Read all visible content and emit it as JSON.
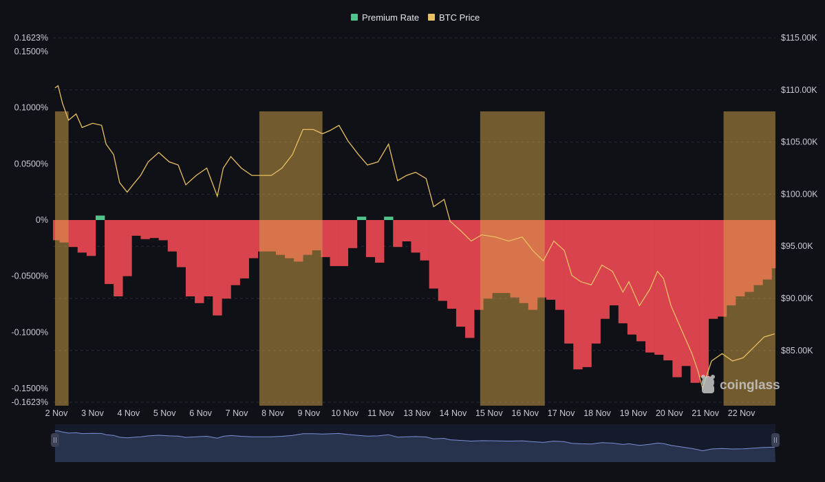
{
  "chart_data": {
    "type": "bar+line",
    "title": "",
    "legend": {
      "placement": "top-center",
      "items": [
        {
          "name": "Premium Rate",
          "color": "#4fc38a"
        },
        {
          "name": "BTC Price",
          "color": "#e8c062"
        }
      ]
    },
    "x_tick_labels": [
      "2 Nov",
      "3 Nov",
      "4 Nov",
      "5 Nov",
      "6 Nov",
      "7 Nov",
      "8 Nov",
      "9 Nov",
      "10 Nov",
      "11 Nov",
      "13 Nov",
      "14 Nov",
      "15 Nov",
      "16 Nov",
      "17 Nov",
      "18 Nov",
      "19 Nov",
      "20 Nov",
      "21 Nov",
      "22 Nov"
    ],
    "y_left": {
      "ticks": [
        "0.1623%",
        "0.1500%",
        "0.1000%",
        "0.0500%",
        "0%",
        "-0.0500%",
        "-0.1000%",
        "-0.1500%",
        "-0.1623%"
      ],
      "tick_values": [
        0.1623,
        0.15,
        0.1,
        0.05,
        0,
        -0.05,
        -0.1,
        -0.15,
        -0.1623
      ],
      "range": [
        -0.1623,
        0.1623
      ],
      "unit": "%"
    },
    "y_right": {
      "ticks": [
        "$115.00K",
        "$110.00K",
        "$105.00K",
        "$100.00K",
        "$95.00K",
        "$90.00K",
        "$85.00K"
      ],
      "tick_values": [
        115,
        110,
        105,
        100,
        95,
        90,
        85
      ],
      "unit": "$K"
    },
    "grid": "dashed horizontal",
    "colors": {
      "negative_bar": "#d9434e",
      "positive_bar": "#4fc38a",
      "price_line": "#e8c062",
      "highlight_band": "#c89a44",
      "navigator_line": "#7b8fd6",
      "navigator_fill": "#27324d",
      "background": "#0f1117"
    },
    "highlight_bands": [
      {
        "from": "2 Nov 00:00",
        "to": "2 Nov 09:00"
      },
      {
        "from": "7 Nov 16:00",
        "to": "9 Nov 10:00"
      },
      {
        "from": "13 Nov 19:00",
        "to": "15 Nov 14:00"
      },
      {
        "from": "20 Nov 13:00",
        "to": "21 Nov 23:30"
      }
    ],
    "premium_rate": {
      "name": "Premium Rate",
      "start": "2 Nov 00:00",
      "interval_hours": 6,
      "values": [
        -0.018,
        -0.02,
        -0.024,
        -0.029,
        -0.032,
        0.004,
        -0.057,
        -0.068,
        -0.05,
        -0.014,
        -0.017,
        -0.016,
        -0.018,
        -0.028,
        -0.042,
        -0.068,
        -0.074,
        -0.068,
        -0.085,
        -0.07,
        -0.058,
        -0.052,
        -0.034,
        -0.028,
        -0.028,
        -0.031,
        -0.034,
        -0.037,
        -0.031,
        -0.027,
        -0.033,
        -0.041,
        -0.041,
        -0.025,
        0.003,
        -0.033,
        -0.038,
        0.003,
        -0.024,
        -0.019,
        -0.029,
        -0.036,
        -0.061,
        -0.072,
        -0.079,
        -0.095,
        -0.105,
        -0.08,
        -0.07,
        -0.065,
        -0.065,
        -0.069,
        -0.074,
        -0.08,
        -0.069,
        -0.071,
        -0.08,
        -0.11,
        -0.133,
        -0.131,
        -0.11,
        -0.088,
        -0.076,
        -0.092,
        -0.102,
        -0.108,
        -0.118,
        -0.12,
        -0.125,
        -0.14,
        -0.13,
        -0.145,
        -0.14,
        -0.088,
        -0.086,
        -0.076,
        -0.068,
        -0.064,
        -0.058,
        -0.053,
        -0.043
      ]
    },
    "btc_price": {
      "name": "BTC Price",
      "unit": "$K",
      "points": [
        [
          "2 Nov 00:00",
          110.2
        ],
        [
          "2 Nov 02:00",
          110.4
        ],
        [
          "2 Nov 05:00",
          108.7
        ],
        [
          "2 Nov 09:00",
          107.1
        ],
        [
          "2 Nov 14:00",
          107.7
        ],
        [
          "2 Nov 18:00",
          106.4
        ],
        [
          "3 Nov 01:00",
          106.8
        ],
        [
          "3 Nov 07:00",
          106.6
        ],
        [
          "3 Nov 10:00",
          104.8
        ],
        [
          "3 Nov 15:00",
          103.8
        ],
        [
          "3 Nov 19:00",
          101.1
        ],
        [
          "4 Nov 00:00",
          100.2
        ],
        [
          "4 Nov 05:00",
          101.1
        ],
        [
          "4 Nov 09:00",
          101.8
        ],
        [
          "4 Nov 14:00",
          103.1
        ],
        [
          "4 Nov 21:00",
          104.0
        ],
        [
          "5 Nov 04:00",
          103.1
        ],
        [
          "5 Nov 10:00",
          102.8
        ],
        [
          "5 Nov 15:00",
          100.9
        ],
        [
          "5 Nov 22:00",
          101.8
        ],
        [
          "6 Nov 05:00",
          102.5
        ],
        [
          "6 Nov 12:00",
          99.8
        ],
        [
          "6 Nov 16:00",
          102.5
        ],
        [
          "6 Nov 21:00",
          103.6
        ],
        [
          "7 Nov 04:00",
          102.5
        ],
        [
          "7 Nov 11:00",
          101.8
        ],
        [
          "7 Nov 17:00",
          101.8
        ],
        [
          "8 Nov 00:00",
          101.8
        ],
        [
          "8 Nov 07:00",
          102.5
        ],
        [
          "8 Nov 14:00",
          103.8
        ],
        [
          "8 Nov 21:00",
          106.2
        ],
        [
          "9 Nov 04:00",
          106.2
        ],
        [
          "9 Nov 10:00",
          105.8
        ],
        [
          "9 Nov 15:00",
          106.1
        ],
        [
          "9 Nov 21:00",
          106.6
        ],
        [
          "10 Nov 03:00",
          105.1
        ],
        [
          "10 Nov 10:00",
          103.8
        ],
        [
          "10 Nov 16:00",
          102.8
        ],
        [
          "10 Nov 23:00",
          103.1
        ],
        [
          "11 Nov 06:00",
          104.8
        ],
        [
          "11 Nov 12:00",
          101.3
        ],
        [
          "11 Nov 18:00",
          101.8
        ],
        [
          "12 Nov 00:00",
          102.1
        ],
        [
          "12 Nov 07:00",
          101.5
        ],
        [
          "12 Nov 12:00",
          98.8
        ],
        [
          "12 Nov 19:00",
          99.5
        ],
        [
          "12 Nov 23:00",
          97.4
        ],
        [
          "13 Nov 06:00",
          96.5
        ],
        [
          "13 Nov 13:00",
          95.5
        ],
        [
          "13 Nov 20:00",
          96.1
        ],
        [
          "14 Nov 05:00",
          95.9
        ],
        [
          "14 Nov 14:00",
          95.5
        ],
        [
          "14 Nov 23:00",
          95.9
        ],
        [
          "15 Nov 06:00",
          94.6
        ],
        [
          "15 Nov 13:00",
          93.6
        ],
        [
          "15 Nov 20:00",
          95.5
        ],
        [
          "16 Nov 03:00",
          94.6
        ],
        [
          "16 Nov 08:00",
          92.2
        ],
        [
          "16 Nov 14:00",
          91.6
        ],
        [
          "16 Nov 21:00",
          91.3
        ],
        [
          "17 Nov 04:00",
          93.2
        ],
        [
          "17 Nov 11:00",
          92.6
        ],
        [
          "17 Nov 18:00",
          90.6
        ],
        [
          "17 Nov 22:00",
          91.6
        ],
        [
          "18 Nov 05:00",
          89.3
        ],
        [
          "18 Nov 12:00",
          90.9
        ],
        [
          "18 Nov 17:00",
          92.6
        ],
        [
          "18 Nov 21:00",
          91.9
        ],
        [
          "19 Nov 02:00",
          89.3
        ],
        [
          "19 Nov 09:00",
          87.0
        ],
        [
          "19 Nov 16:00",
          84.7
        ],
        [
          "19 Nov 20:00",
          83.0
        ],
        [
          "19 Nov 23:00",
          81.4
        ],
        [
          "20 Nov 05:00",
          84.0
        ],
        [
          "20 Nov 12:00",
          84.7
        ],
        [
          "20 Nov 19:00",
          84.0
        ],
        [
          "21 Nov 02:00",
          84.3
        ],
        [
          "21 Nov 09:00",
          85.3
        ],
        [
          "21 Nov 16:00",
          86.3
        ],
        [
          "21 Nov 23:00",
          86.6
        ]
      ]
    }
  },
  "watermark": {
    "text": "coinglass",
    "icon": "coinglass-logo-icon"
  },
  "navigator": {
    "handle_icon": "drag-handle-icon"
  }
}
